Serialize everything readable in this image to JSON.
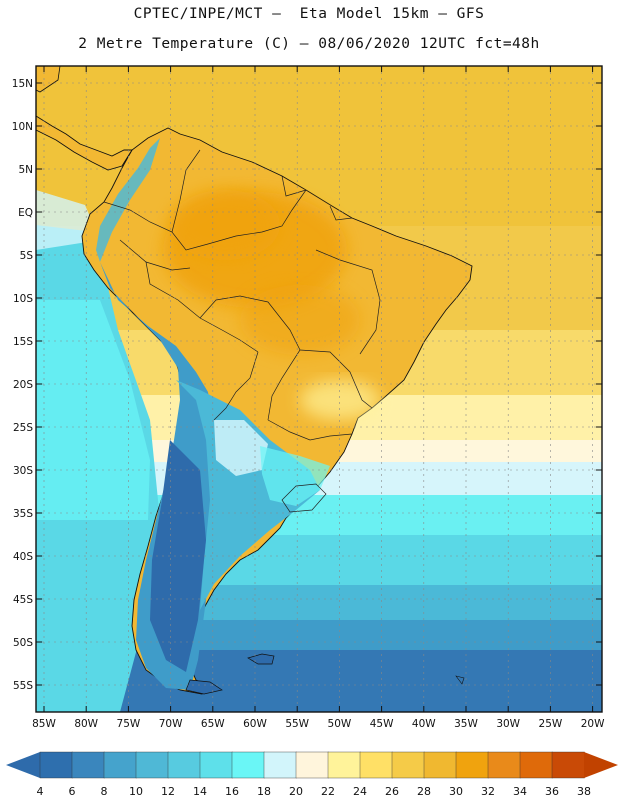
{
  "header": {
    "line1": "CPTEC/INPE/MCT –  Eta Model 15km – GFS",
    "line2": "2 Metre Temperature (C) – 08/06/2020 12UTC fct=48h"
  },
  "map": {
    "lat_labels": [
      "15N",
      "10N",
      "5N",
      "EQ",
      "5S",
      "10S",
      "15S",
      "20S",
      "25S",
      "30S",
      "35S",
      "40S",
      "45S",
      "50S",
      "55S"
    ],
    "lon_labels": [
      "85W",
      "80W",
      "75W",
      "70W",
      "65W",
      "60W",
      "55W",
      "50W",
      "45W",
      "40W",
      "35W",
      "30W",
      "25W",
      "20W"
    ]
  },
  "colorbar": {
    "labels": [
      "4",
      "6",
      "8",
      "10",
      "12",
      "14",
      "16",
      "18",
      "20",
      "22",
      "24",
      "26",
      "28",
      "30",
      "32",
      "34",
      "36",
      "38"
    ],
    "colors": [
      "#2e6fae",
      "#3a86bd",
      "#45a3cc",
      "#4fb8d6",
      "#57cbe0",
      "#5ee0ea",
      "#6af6f6",
      "#d2f5fb",
      "#fff5dc",
      "#fff39a",
      "#ffe066",
      "#f5cb48",
      "#f0b830",
      "#f0a30e",
      "#e98a1a",
      "#df6a0a",
      "#c94a06"
    ],
    "low_color": "#2e6bab",
    "high_color": "#c14200"
  }
}
